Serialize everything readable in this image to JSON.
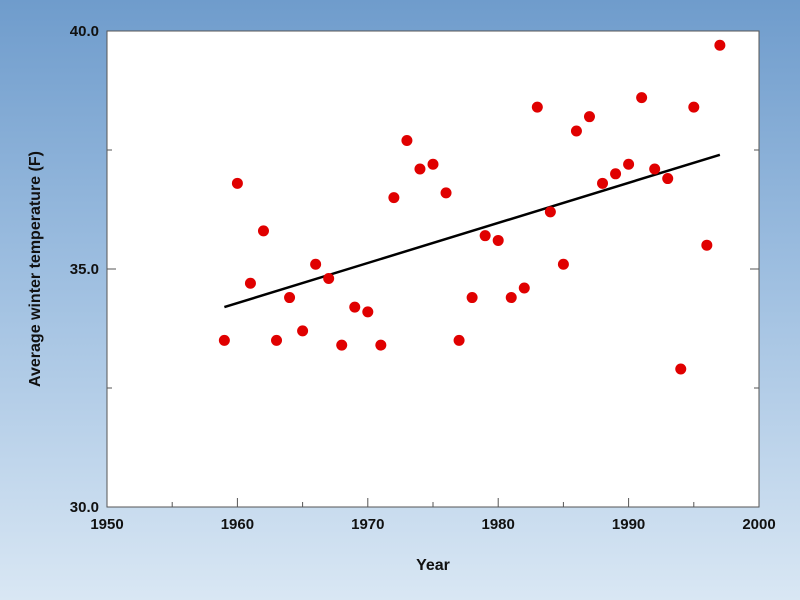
{
  "chart_data": {
    "type": "scatter",
    "title": "",
    "xlabel": "Year",
    "ylabel": "Average winter  temperature (F)",
    "xlim": [
      1950,
      2000
    ],
    "ylim": [
      30.0,
      40.0
    ],
    "x_ticks": [
      1950,
      1960,
      1970,
      1980,
      1990,
      2000
    ],
    "y_ticks": [
      30.0,
      35.0,
      40.0
    ],
    "x_tick_labels": [
      "1950",
      "1960",
      "1970",
      "1980",
      "1990",
      "2000"
    ],
    "y_tick_labels": [
      "30.0",
      "35.0",
      "40.0"
    ],
    "grid": false,
    "legend": "none",
    "colors": {
      "points": "#e00000",
      "trendline": "#000000",
      "plot_background": "#ffffff"
    },
    "series": [
      {
        "type": "scatter",
        "x": [
          1959,
          1960,
          1961,
          1962,
          1963,
          1964,
          1965,
          1966,
          1967,
          1968,
          1969,
          1970,
          1971,
          1972,
          1973,
          1974,
          1975,
          1976,
          1977,
          1978,
          1979,
          1980,
          1981,
          1982,
          1983,
          1984,
          1985,
          1986,
          1987,
          1988,
          1989,
          1990,
          1991,
          1992,
          1993,
          1994,
          1995,
          1996,
          1997
        ],
        "y": [
          33.5,
          36.8,
          34.7,
          35.8,
          33.5,
          34.4,
          33.7,
          35.1,
          34.8,
          33.4,
          34.2,
          34.1,
          33.4,
          36.5,
          37.7,
          37.1,
          37.2,
          36.6,
          33.5,
          34.4,
          35.7,
          35.6,
          34.4,
          34.6,
          38.4,
          36.2,
          35.1,
          37.9,
          38.2,
          36.8,
          37.0,
          37.2,
          38.6,
          37.1,
          36.9,
          32.9,
          38.4,
          35.5,
          39.7
        ]
      },
      {
        "type": "line",
        "x": [
          1959,
          1997
        ],
        "y": [
          34.2,
          37.4
        ]
      }
    ]
  }
}
